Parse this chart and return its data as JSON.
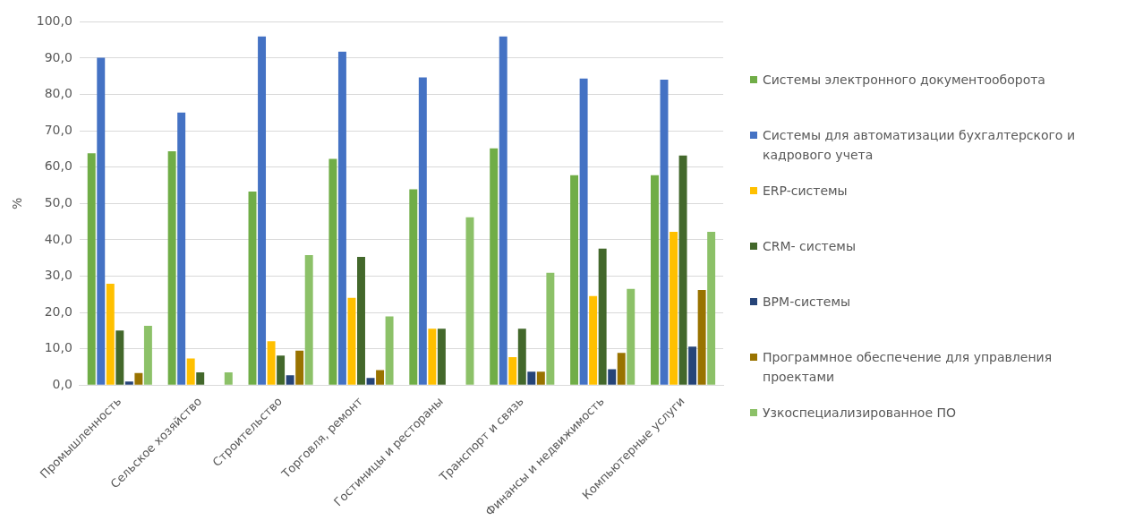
{
  "chart_data": {
    "type": "bar",
    "ylabel": "%",
    "categories": [
      "Промышленность",
      "Сельское хозяйство",
      "Строительство",
      "Торговля, ремонт",
      "Гостиницы и рестораны",
      "Транспорт и связь",
      "Финансы и недвижимость",
      "Компьютерные услуги"
    ],
    "series": [
      {
        "name": "Системы электронного документооборота",
        "color": "#70ad47",
        "values": [
          63.8,
          64.4,
          53.3,
          62.3,
          53.9,
          65.2,
          57.8,
          57.8
        ]
      },
      {
        "name": "Системы для автоматизации бухгалтерского и кадрового учета",
        "color": "#4472c4",
        "values": [
          90.1,
          75.0,
          96.0,
          91.8,
          84.7,
          96.0,
          84.4,
          84.1
        ]
      },
      {
        "name": "ERP-системы",
        "color": "#ffc000",
        "values": [
          27.9,
          7.3,
          12.1,
          24.0,
          15.5,
          7.7,
          24.5,
          42.2
        ]
      },
      {
        "name": "CRM- системы",
        "color": "#43682b",
        "values": [
          15.0,
          3.5,
          8.1,
          35.3,
          15.5,
          15.5,
          37.6,
          63.2
        ]
      },
      {
        "name": "BPM-системы",
        "color": "#264478",
        "values": [
          1.0,
          0,
          2.7,
          2.0,
          0,
          3.7,
          4.4,
          10.6
        ]
      },
      {
        "name": "Программное обеспечение для управления проектами",
        "color": "#997300",
        "values": [
          3.3,
          0,
          9.5,
          4.1,
          0,
          3.7,
          8.9,
          26.2
        ]
      },
      {
        "name": "Узкоспециализированное ПО",
        "color": "#8cc168",
        "values": [
          16.3,
          3.5,
          35.8,
          18.9,
          46.2,
          30.9,
          26.5,
          42.2
        ]
      }
    ],
    "ylim": [
      0,
      100
    ],
    "yticks": [
      {
        "value": 0,
        "label": "0,0"
      },
      {
        "value": 10,
        "label": "10,0"
      },
      {
        "value": 20,
        "label": "20,0"
      },
      {
        "value": 30,
        "label": "30,0"
      },
      {
        "value": 40,
        "label": "40,0"
      },
      {
        "value": 50,
        "label": "50,0"
      },
      {
        "value": 60,
        "label": "60,0"
      },
      {
        "value": 70,
        "label": "70,0"
      },
      {
        "value": 80,
        "label": "80,0"
      },
      {
        "value": 90,
        "label": "90,0"
      },
      {
        "value": 100,
        "label": "100,0"
      }
    ],
    "grid": "y",
    "legend": "right"
  }
}
